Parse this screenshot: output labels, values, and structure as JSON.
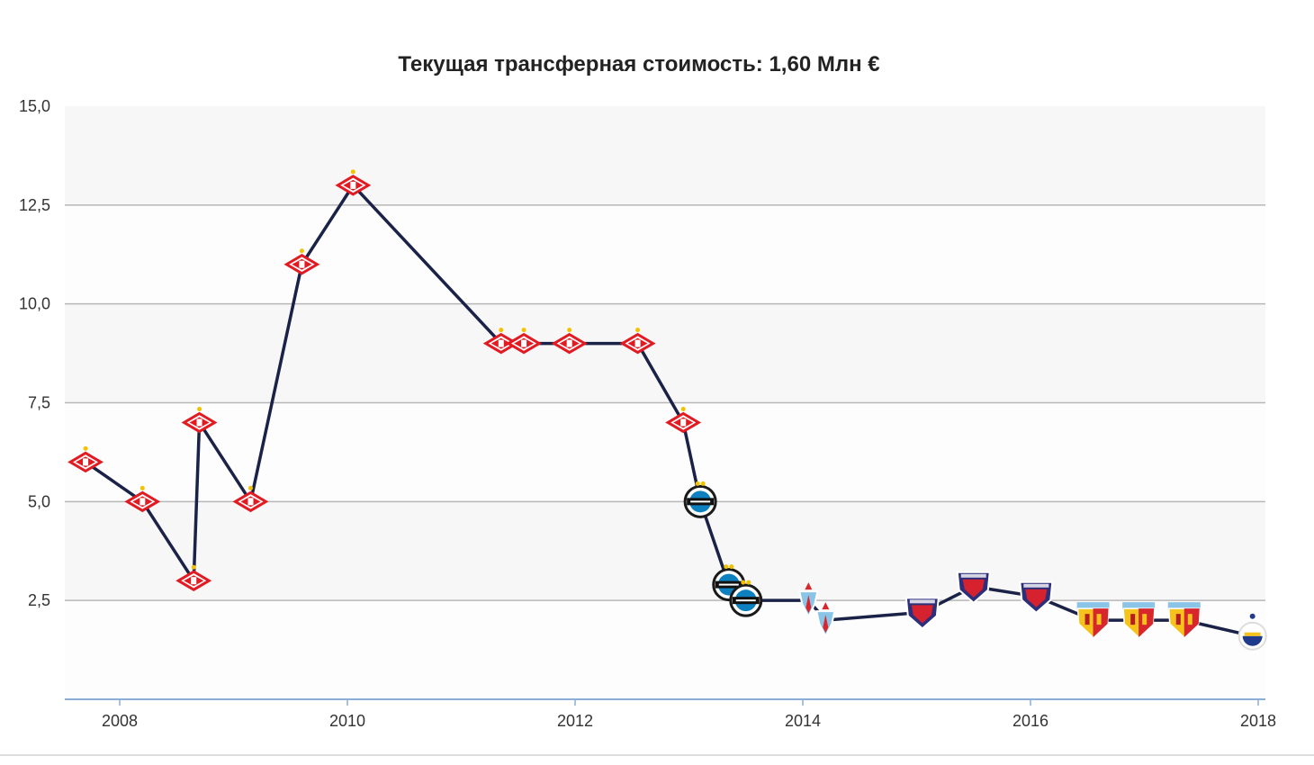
{
  "chart_data": {
    "type": "line",
    "title": "Текущая трансферная стоимость: 1,60 Млн €",
    "xlabel": "",
    "ylabel": "",
    "xlim": [
      2007.6,
      2018.05
    ],
    "ylim": [
      0,
      15
    ],
    "x_ticks": [
      "2008",
      "2010",
      "2012",
      "2014",
      "2016",
      "2018"
    ],
    "x_tick_values": [
      2008,
      2010,
      2012,
      2014,
      2016,
      2018
    ],
    "y_ticks": [
      "15,0",
      "12,5",
      "10,0",
      "7,5",
      "5,0",
      "2,5"
    ],
    "y_tick_values": [
      15,
      12.5,
      10,
      7.5,
      5,
      2.5
    ],
    "grid": "horizontal",
    "legend": "none",
    "line_color": "#1b2247",
    "series": [
      {
        "values": [
          {
            "x": 2007.7,
            "y": 6.0,
            "club": "spartak"
          },
          {
            "x": 2008.2,
            "y": 5.0,
            "club": "spartak"
          },
          {
            "x": 2008.65,
            "y": 3.0,
            "club": "spartak"
          },
          {
            "x": 2008.7,
            "y": 7.0,
            "club": "spartak"
          },
          {
            "x": 2009.15,
            "y": 5.0,
            "club": "spartak"
          },
          {
            "x": 2009.6,
            "y": 11.0,
            "club": "spartak"
          },
          {
            "x": 2010.05,
            "y": 13.0,
            "club": "spartak"
          },
          {
            "x": 2011.35,
            "y": 9.0,
            "club": "spartak"
          },
          {
            "x": 2011.55,
            "y": 9.0,
            "club": "spartak"
          },
          {
            "x": 2011.95,
            "y": 9.0,
            "club": "spartak"
          },
          {
            "x": 2012.55,
            "y": 9.0,
            "club": "spartak"
          },
          {
            "x": 2012.95,
            "y": 7.0,
            "club": "spartak"
          },
          {
            "x": 2013.1,
            "y": 5.0,
            "club": "gremio"
          },
          {
            "x": 2013.35,
            "y": 2.9,
            "club": "gremio"
          },
          {
            "x": 2013.5,
            "y": 2.5,
            "club": "gremio"
          },
          {
            "x": 2014.05,
            "y": 2.5,
            "club": "celta"
          },
          {
            "x": 2014.2,
            "y": 2.0,
            "club": "celta"
          },
          {
            "x": 2015.05,
            "y": 2.2,
            "club": "trabzon"
          },
          {
            "x": 2015.5,
            "y": 2.85,
            "club": "trabzon"
          },
          {
            "x": 2016.05,
            "y": 2.6,
            "club": "trabzon"
          },
          {
            "x": 2016.55,
            "y": 2.0,
            "club": "kayseri"
          },
          {
            "x": 2016.95,
            "y": 2.0,
            "club": "kayseri"
          },
          {
            "x": 2017.35,
            "y": 2.0,
            "club": "kayseri"
          },
          {
            "x": 2017.95,
            "y": 1.6,
            "club": "other"
          }
        ]
      }
    ],
    "marker_icons": {
      "spartak": "spartak-crest-icon",
      "gremio": "gremio-crest-icon",
      "celta": "celta-crest-icon",
      "trabzon": "club-shield-icon",
      "kayseri": "kayseri-crest-icon",
      "other": "club-badge-icon"
    },
    "colors": {
      "band_light": "#f7f7f7",
      "band_lighter": "#fdfdfd",
      "grid": "#b7b7b7",
      "axis": "#8aaed6",
      "spartak": "#e21b22",
      "gremio_blue": "#0d80bf",
      "celta_blue": "#8ac5e8",
      "trabzon_navy": "#2d2f7a",
      "trabzon_red": "#d6212e",
      "kayseri_yellow": "#f6c21c",
      "kayseri_red": "#d8262d",
      "other_blue": "#203a8c",
      "star": "#f2c200"
    }
  }
}
